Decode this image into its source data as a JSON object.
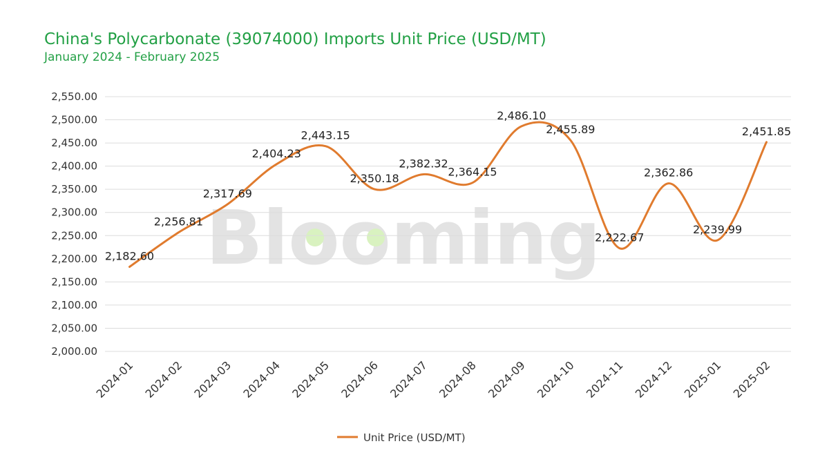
{
  "header": {
    "title": "China's Polycarbonate (39074000) Imports Unit Price (USD/MT)",
    "subtitle": "January 2024 - February 2025"
  },
  "watermark": {
    "text": "Blooming",
    "color": "#e3e3e3",
    "dot_color": "#d9f2c0"
  },
  "colors": {
    "title": "#22a045",
    "line": "#e07b2e",
    "grid": "#dcdcdc"
  },
  "chart_data": {
    "type": "line",
    "title": "China's Polycarbonate (39074000) Imports Unit Price (USD/MT)",
    "subtitle": "January 2024 - February 2025",
    "categories": [
      "2024-01",
      "2024-02",
      "2024-03",
      "2024-04",
      "2024-05",
      "2024-06",
      "2024-07",
      "2024-08",
      "2024-09",
      "2024-10",
      "2024-11",
      "2024-12",
      "2025-01",
      "2025-02"
    ],
    "series": [
      {
        "name": "Unit Price (USD/MT)",
        "values": [
          2182.6,
          2256.81,
          2317.69,
          2404.23,
          2443.15,
          2350.18,
          2382.32,
          2364.15,
          2486.1,
          2455.89,
          2222.67,
          2362.86,
          2239.99,
          2451.85
        ],
        "labels": [
          "2,182.60",
          "2,256.81",
          "2,317.69",
          "2,404.23",
          "2,443.15",
          "2,350.18",
          "2,382.32",
          "2,364.15",
          "2,486.10",
          "2,455.89",
          "2,222.67",
          "2,362.86",
          "2,239.99",
          "2,451.85"
        ],
        "color": "#e07b2e"
      }
    ],
    "yticks": [
      "2,000.00",
      "2,050.00",
      "2,100.00",
      "2,150.00",
      "2,200.00",
      "2,250.00",
      "2,300.00",
      "2,350.00",
      "2,400.00",
      "2,450.00",
      "2,500.00",
      "2,550.00"
    ],
    "ylim": [
      2000,
      2550
    ],
    "xlabel": "",
    "ylabel": "",
    "grid": true,
    "smooth": true,
    "legend_position": "bottom"
  }
}
